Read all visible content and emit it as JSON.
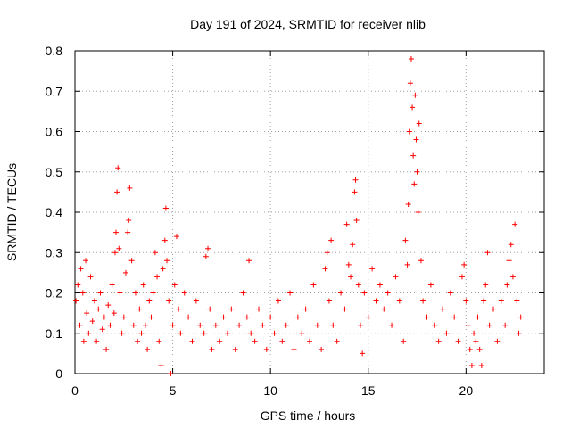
{
  "chart_data": {
    "type": "scatter",
    "title": "Day 191 of 2024, SRMTID for receiver nlib",
    "xlabel": "GPS time / hours",
    "ylabel": "SRMTID / TECUs",
    "xlim": [
      0,
      24
    ],
    "ylim": [
      0,
      0.8
    ],
    "x_ticks": [
      "0",
      "5",
      "10",
      "15",
      "20"
    ],
    "y_ticks": [
      "0",
      "0.1",
      "0.2",
      "0.3",
      "0.4",
      "0.5",
      "0.6",
      "0.7",
      "0.8"
    ],
    "grid": true,
    "marker": "+",
    "color": "#ff0000",
    "series": [
      {
        "name": "SRMTID",
        "points": [
          [
            0.05,
            0.18
          ],
          [
            0.15,
            0.22
          ],
          [
            0.25,
            0.12
          ],
          [
            0.3,
            0.26
          ],
          [
            0.4,
            0.2
          ],
          [
            0.45,
            0.08
          ],
          [
            0.55,
            0.28
          ],
          [
            0.6,
            0.15
          ],
          [
            0.7,
            0.1
          ],
          [
            0.8,
            0.24
          ],
          [
            0.9,
            0.13
          ],
          [
            1.0,
            0.18
          ],
          [
            1.1,
            0.08
          ],
          [
            1.2,
            0.16
          ],
          [
            1.3,
            0.2
          ],
          [
            1.4,
            0.11
          ],
          [
            1.5,
            0.14
          ],
          [
            1.6,
            0.06
          ],
          [
            1.7,
            0.17
          ],
          [
            1.8,
            0.12
          ],
          [
            1.9,
            0.22
          ],
          [
            2.0,
            0.15
          ],
          [
            2.05,
            0.3
          ],
          [
            2.1,
            0.35
          ],
          [
            2.15,
            0.45
          ],
          [
            2.2,
            0.51
          ],
          [
            2.25,
            0.31
          ],
          [
            2.3,
            0.2
          ],
          [
            2.4,
            0.1
          ],
          [
            2.5,
            0.14
          ],
          [
            2.6,
            0.25
          ],
          [
            2.7,
            0.35
          ],
          [
            2.75,
            0.38
          ],
          [
            2.8,
            0.46
          ],
          [
            2.9,
            0.28
          ],
          [
            3.0,
            0.12
          ],
          [
            3.1,
            0.2
          ],
          [
            3.2,
            0.08
          ],
          [
            3.3,
            0.16
          ],
          [
            3.4,
            0.1
          ],
          [
            3.5,
            0.22
          ],
          [
            3.6,
            0.12
          ],
          [
            3.7,
            0.06
          ],
          [
            3.8,
            0.18
          ],
          [
            3.9,
            0.14
          ],
          [
            4.0,
            0.2
          ],
          [
            4.1,
            0.3
          ],
          [
            4.2,
            0.24
          ],
          [
            4.3,
            0.08
          ],
          [
            4.4,
            0.02
          ],
          [
            4.5,
            0.26
          ],
          [
            4.6,
            0.33
          ],
          [
            4.65,
            0.41
          ],
          [
            4.7,
            0.28
          ],
          [
            4.8,
            0.18
          ],
          [
            4.9,
            0.0
          ],
          [
            5.0,
            0.12
          ],
          [
            5.1,
            0.22
          ],
          [
            5.2,
            0.34
          ],
          [
            5.3,
            0.16
          ],
          [
            5.4,
            0.1
          ],
          [
            5.6,
            0.2
          ],
          [
            5.8,
            0.14
          ],
          [
            6.0,
            0.08
          ],
          [
            6.2,
            0.18
          ],
          [
            6.4,
            0.12
          ],
          [
            6.6,
            0.1
          ],
          [
            6.7,
            0.29
          ],
          [
            6.8,
            0.31
          ],
          [
            6.9,
            0.16
          ],
          [
            7.0,
            0.06
          ],
          [
            7.2,
            0.12
          ],
          [
            7.4,
            0.08
          ],
          [
            7.6,
            0.14
          ],
          [
            7.8,
            0.1
          ],
          [
            8.0,
            0.16
          ],
          [
            8.2,
            0.06
          ],
          [
            8.4,
            0.12
          ],
          [
            8.6,
            0.2
          ],
          [
            8.8,
            0.14
          ],
          [
            8.9,
            0.28
          ],
          [
            9.0,
            0.1
          ],
          [
            9.2,
            0.08
          ],
          [
            9.4,
            0.16
          ],
          [
            9.6,
            0.12
          ],
          [
            9.8,
            0.06
          ],
          [
            10.0,
            0.14
          ],
          [
            10.2,
            0.1
          ],
          [
            10.4,
            0.18
          ],
          [
            10.6,
            0.08
          ],
          [
            10.8,
            0.12
          ],
          [
            11.0,
            0.2
          ],
          [
            11.2,
            0.06
          ],
          [
            11.4,
            0.14
          ],
          [
            11.6,
            0.1
          ],
          [
            11.8,
            0.16
          ],
          [
            12.0,
            0.08
          ],
          [
            12.2,
            0.22
          ],
          [
            12.4,
            0.12
          ],
          [
            12.6,
            0.06
          ],
          [
            12.8,
            0.26
          ],
          [
            12.9,
            0.3
          ],
          [
            13.0,
            0.18
          ],
          [
            13.1,
            0.33
          ],
          [
            13.2,
            0.12
          ],
          [
            13.4,
            0.08
          ],
          [
            13.6,
            0.2
          ],
          [
            13.8,
            0.16
          ],
          [
            13.9,
            0.37
          ],
          [
            14.0,
            0.27
          ],
          [
            14.1,
            0.24
          ],
          [
            14.2,
            0.32
          ],
          [
            14.3,
            0.45
          ],
          [
            14.35,
            0.48
          ],
          [
            14.4,
            0.38
          ],
          [
            14.5,
            0.22
          ],
          [
            14.6,
            0.12
          ],
          [
            14.7,
            0.05
          ],
          [
            14.8,
            0.2
          ],
          [
            15.0,
            0.14
          ],
          [
            15.2,
            0.26
          ],
          [
            15.4,
            0.18
          ],
          [
            15.6,
            0.22
          ],
          [
            15.8,
            0.16
          ],
          [
            16.0,
            0.2
          ],
          [
            16.2,
            0.12
          ],
          [
            16.4,
            0.24
          ],
          [
            16.6,
            0.18
          ],
          [
            16.8,
            0.08
          ],
          [
            16.9,
            0.33
          ],
          [
            17.0,
            0.27
          ],
          [
            17.05,
            0.42
          ],
          [
            17.1,
            0.6
          ],
          [
            17.15,
            0.72
          ],
          [
            17.2,
            0.78
          ],
          [
            17.25,
            0.66
          ],
          [
            17.3,
            0.54
          ],
          [
            17.35,
            0.47
          ],
          [
            17.4,
            0.69
          ],
          [
            17.45,
            0.58
          ],
          [
            17.5,
            0.5
          ],
          [
            17.55,
            0.4
          ],
          [
            17.6,
            0.62
          ],
          [
            17.7,
            0.28
          ],
          [
            17.8,
            0.18
          ],
          [
            18.0,
            0.14
          ],
          [
            18.2,
            0.22
          ],
          [
            18.4,
            0.12
          ],
          [
            18.6,
            0.08
          ],
          [
            18.8,
            0.16
          ],
          [
            19.0,
            0.1
          ],
          [
            19.2,
            0.2
          ],
          [
            19.4,
            0.14
          ],
          [
            19.6,
            0.08
          ],
          [
            19.8,
            0.24
          ],
          [
            19.9,
            0.27
          ],
          [
            20.0,
            0.18
          ],
          [
            20.1,
            0.12
          ],
          [
            20.2,
            0.06
          ],
          [
            20.3,
            0.02
          ],
          [
            20.4,
            0.1
          ],
          [
            20.5,
            0.08
          ],
          [
            20.6,
            0.14
          ],
          [
            20.7,
            0.06
          ],
          [
            20.8,
            0.02
          ],
          [
            20.9,
            0.18
          ],
          [
            21.0,
            0.22
          ],
          [
            21.1,
            0.3
          ],
          [
            21.2,
            0.12
          ],
          [
            21.4,
            0.16
          ],
          [
            21.6,
            0.08
          ],
          [
            21.8,
            0.18
          ],
          [
            22.0,
            0.12
          ],
          [
            22.1,
            0.22
          ],
          [
            22.2,
            0.28
          ],
          [
            22.3,
            0.32
          ],
          [
            22.4,
            0.24
          ],
          [
            22.5,
            0.37
          ],
          [
            22.6,
            0.18
          ],
          [
            22.7,
            0.1
          ],
          [
            22.8,
            0.14
          ]
        ]
      }
    ]
  }
}
